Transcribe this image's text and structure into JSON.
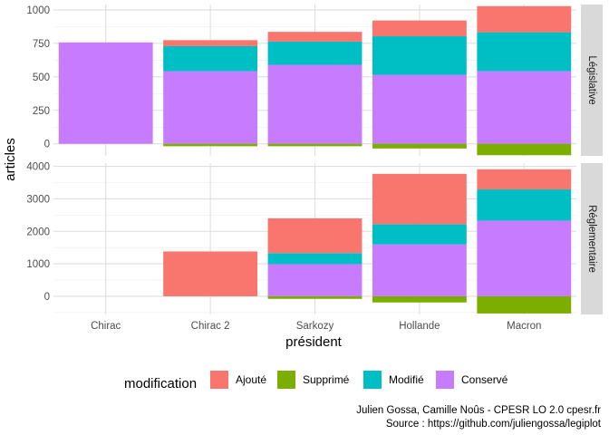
{
  "chart_data": {
    "type": "bar",
    "stacked": true,
    "categories": [
      "Chirac",
      "Chirac 2",
      "Sarkozy",
      "Hollande",
      "Macron"
    ],
    "xlabel": "président",
    "ylabel": "articles",
    "legend": {
      "title": "modification",
      "placement": "bottom",
      "entries": [
        {
          "key": "ajoute",
          "label": "Ajouté",
          "color": "#F8766D"
        },
        {
          "key": "supprime",
          "label": "Supprimé",
          "color": "#7CAE00"
        },
        {
          "key": "modifie",
          "label": "Modifié",
          "color": "#00BFC4"
        },
        {
          "key": "conserve",
          "label": "Conservé",
          "color": "#C77CFF"
        }
      ]
    },
    "panels": [
      {
        "strip": "Législative",
        "ylim": [
          -90,
          1040
        ],
        "yticks": [
          0,
          250,
          500,
          750,
          1000
        ],
        "series": [
          {
            "key": "conserve",
            "name": "Conservé",
            "values": [
              757,
              542,
              590,
              515,
              542
            ]
          },
          {
            "key": "modifie",
            "name": "Modifié",
            "values": [
              0,
              187,
              173,
              288,
              291
            ]
          },
          {
            "key": "ajoute",
            "name": "Ajouté",
            "values": [
              0,
              45,
              73,
              118,
              195
            ]
          },
          {
            "key": "supprime",
            "name": "Supprimé",
            "values": [
              0,
              -18,
              -18,
              -35,
              -85
            ]
          }
        ]
      },
      {
        "strip": "Réglementaire",
        "ylim": [
          -560,
          4100
        ],
        "yticks": [
          0,
          1000,
          2000,
          3000,
          4000
        ],
        "series": [
          {
            "key": "conserve",
            "name": "Conservé",
            "values": [
              0,
              0,
              990,
              1600,
              2330
            ]
          },
          {
            "key": "modifie",
            "name": "Modifié",
            "values": [
              0,
              0,
              340,
              620,
              960
            ]
          },
          {
            "key": "ajoute",
            "name": "Ajouté",
            "values": [
              0,
              1380,
              1070,
              1550,
              620
            ]
          },
          {
            "key": "supprime",
            "name": "Supprimé",
            "values": [
              0,
              0,
              -80,
              -190,
              -530
            ]
          }
        ]
      }
    ],
    "grid": true,
    "theme": "minimal"
  },
  "caption": {
    "line1": "Julien Gossa, Camille Noûs - CPESR LO 2.0 cpesr.fr",
    "line2": "Source : https://github.com/juliengossa/legiplot"
  }
}
